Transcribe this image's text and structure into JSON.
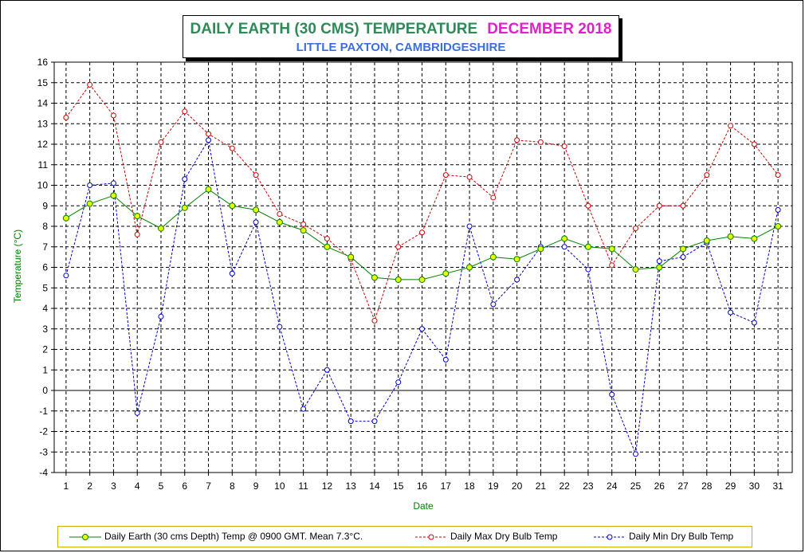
{
  "title": {
    "main": "DAILY EARTH (30 CMS) TEMPERATURE",
    "month": "DECEMBER 2018",
    "subtitle": "LITTLE PAXTON, CAMBRIDGESHIRE"
  },
  "colors": {
    "earth": "#008000",
    "earth_marker": "#e8ff00",
    "max": "#cc0000",
    "min": "#0000cc",
    "title_main": "#2e8b57",
    "title_month": "#e020c8",
    "subtitle": "#3b6fe0",
    "axis_label": "#008000"
  },
  "chart_data": {
    "type": "line",
    "xlabel": "Date",
    "ylabel": "Temperature (°C)",
    "ylim": [
      -4,
      16
    ],
    "grid": true,
    "legend_placement": "bottom",
    "x": [
      1,
      2,
      3,
      4,
      5,
      6,
      7,
      8,
      9,
      10,
      11,
      12,
      13,
      14,
      15,
      16,
      17,
      18,
      19,
      20,
      21,
      22,
      23,
      24,
      25,
      26,
      27,
      28,
      29,
      30,
      31
    ],
    "y_ticks": [
      16,
      15,
      14,
      13,
      12,
      11,
      10,
      9,
      8,
      7,
      6,
      5,
      4,
      3,
      2,
      1,
      0,
      -1,
      -2,
      -3,
      -4
    ],
    "series": [
      {
        "name": "Daily Earth (30 cms Depth) Temp @ 0900 GMT. Mean 7.3°C.",
        "style": "solid",
        "values": [
          8.4,
          9.1,
          9.5,
          8.5,
          7.9,
          8.9,
          9.8,
          9.0,
          8.8,
          8.2,
          7.8,
          7.0,
          6.5,
          5.5,
          5.4,
          5.4,
          5.7,
          6.0,
          6.5,
          6.4,
          6.9,
          7.4,
          7.0,
          6.9,
          5.9,
          6.0,
          6.9,
          7.3,
          7.5,
          7.4,
          8.0
        ]
      },
      {
        "name": "Daily Max Dry Bulb Temp",
        "style": "dashed",
        "values": [
          13.3,
          14.9,
          13.4,
          7.6,
          12.1,
          13.6,
          12.5,
          11.8,
          10.5,
          8.6,
          8.1,
          7.4,
          6.4,
          3.4,
          7.0,
          7.7,
          10.5,
          10.4,
          9.4,
          12.2,
          12.1,
          11.9,
          9.0,
          6.1,
          7.9,
          9.0,
          9.0,
          10.5,
          12.9,
          12.0,
          10.5
        ]
      },
      {
        "name": "Daily Min Dry Bulb Temp",
        "style": "dashed",
        "values": [
          5.6,
          10.0,
          10.1,
          -1.1,
          3.6,
          10.3,
          12.2,
          5.7,
          8.2,
          3.1,
          -0.9,
          1.0,
          -1.5,
          -1.5,
          0.4,
          3.0,
          1.5,
          8.0,
          4.2,
          5.4,
          7.0,
          7.0,
          5.9,
          -0.2,
          -3.1,
          6.3,
          6.5,
          7.2,
          3.8,
          3.3,
          8.8
        ]
      }
    ]
  }
}
